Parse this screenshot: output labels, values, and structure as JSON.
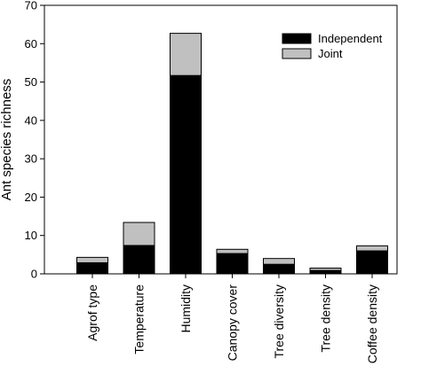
{
  "chart_data": {
    "type": "bar",
    "stacked": true,
    "title": "",
    "xlabel": "",
    "ylabel": "Ant species richness",
    "ylim": [
      0,
      70
    ],
    "yticks": [
      0,
      10,
      20,
      30,
      40,
      50,
      60,
      70
    ],
    "grid": false,
    "legend_position": "top-right",
    "categories": [
      "Agrof type",
      "Temperature",
      "Humidity",
      "Canopy cover",
      "Tree diversity",
      "Tree density",
      "Coffee density"
    ],
    "series": [
      {
        "name": "Independent",
        "color": "#000000",
        "values": [
          2.9,
          7.4,
          51.7,
          5.3,
          2.5,
          0.9,
          6.0
        ]
      },
      {
        "name": "Joint",
        "color": "#c0c0c0",
        "values": [
          1.4,
          6.0,
          11.0,
          1.1,
          1.5,
          0.6,
          1.3
        ]
      }
    ]
  }
}
